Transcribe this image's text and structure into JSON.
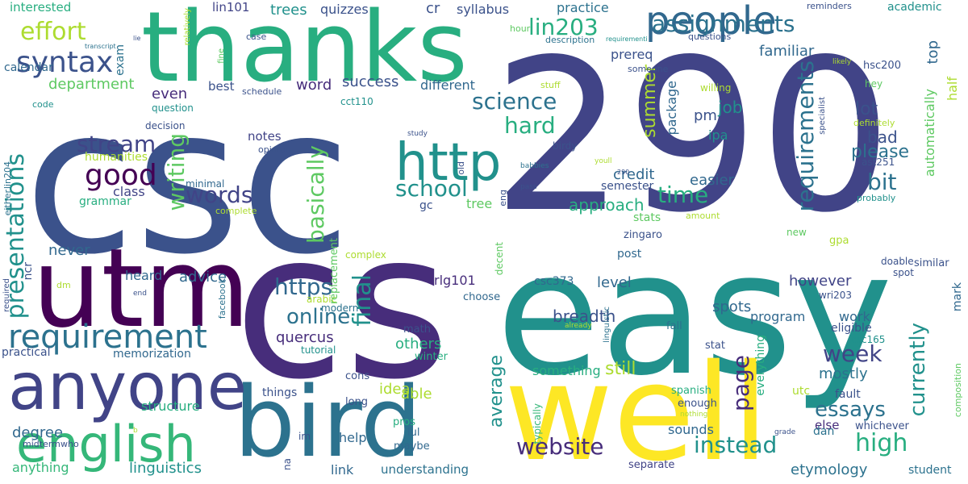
{
  "background": "#ffffff",
  "palette": [
    "#440154",
    "#472d7b",
    "#3b528b",
    "#2c728e",
    "#21918c",
    "#28ae80",
    "#5ec962",
    "#addc30",
    "#fde725"
  ],
  "words": [
    "csc",
    "290",
    "cs",
    "easy",
    "thanks",
    "utm",
    "well",
    "bird",
    "anyone",
    "english",
    "people",
    "http",
    "requirement",
    "good",
    "syntax",
    "assignments",
    "effort",
    "lin203",
    "stream",
    "words",
    "https",
    "online",
    "school",
    "science",
    "hard",
    "time",
    "final",
    "presentations",
    "requirements",
    "basically",
    "writing",
    "summer",
    "week",
    "high",
    "essays",
    "website",
    "instead",
    "page",
    "currently",
    "bit",
    "please",
    "bad",
    "lot",
    "job",
    "pm",
    "ipa",
    "credit",
    "easier",
    "approach",
    "stats",
    "semester",
    "level",
    "however",
    "spots",
    "program",
    "mostly",
    "work",
    "etymology",
    "breadth",
    "quercus",
    "rlg101",
    "others",
    "average",
    "something",
    "still",
    "idea",
    "able",
    "help",
    "link",
    "understanding",
    "linguistics",
    "degree",
    "anything",
    "structure",
    "memorization",
    "advice",
    "heard",
    "never",
    "class",
    "grammar",
    "humanities",
    "department",
    "even",
    "word",
    "success",
    "different",
    "notes",
    "best",
    "trees",
    "quizzes",
    "cr",
    "syllabus",
    "practice",
    "lin101",
    "interested",
    "calendar",
    "exam",
    "familiar",
    "prereq",
    "top",
    "package",
    "automatically",
    "half",
    "sounds",
    "everything",
    "else",
    "mark",
    "utc",
    "composition",
    "similar",
    "gpa",
    "new",
    "zingaro",
    "csc165",
    "eligible",
    "fault",
    "student",
    "whichever",
    "dan",
    "separate",
    "lul",
    "maybe",
    "pros",
    "long",
    "cons",
    "tutorial",
    "winter",
    "math",
    "modern",
    "arabic",
    "choose",
    "csc373",
    "post",
    "fall",
    "stat",
    "spanish",
    "enough",
    "nothing",
    "grade",
    "typically",
    "linguistic",
    "already",
    "decent",
    "complex",
    "tree",
    "gc",
    "eng",
    "old",
    "birdy",
    "study",
    "babbies",
    "pass",
    "youll",
    "290",
    "replacement",
    "minimal",
    "complete",
    "hsc200",
    "cct110",
    "ast251",
    "academic",
    "reminders",
    "questions",
    "hour",
    "description",
    "requirementi",
    "case",
    "fine",
    "relatively",
    "transcript",
    "lie",
    "code",
    "question",
    "decision",
    "opinion",
    "schedule",
    "someone",
    "stuff",
    "willing",
    "likely",
    "hey",
    "definitely",
    "specialist",
    "probably",
    "amount",
    "doable",
    "spot",
    "wri203",
    "required",
    "dm",
    "end",
    "ncr",
    "practical",
    "midterm",
    "who",
    "na",
    "im",
    "b",
    "facebook",
    "b",
    "either",
    "lin204",
    "things",
    "mark",
    "essays",
    "ipa"
  ]
}
